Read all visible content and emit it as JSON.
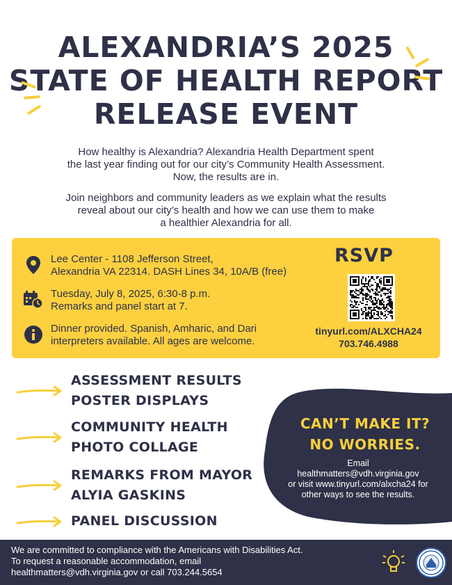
{
  "title": {
    "line1": "ALEXANDRIA’S 2025",
    "line2": "STATE OF HEALTH REPORT",
    "line3": "RELEASE EVENT"
  },
  "intro": {
    "p1": [
      "How healthy is Alexandria? Alexandria Health Department spent",
      "the last year finding out for our city’s Community Health Assessment.",
      "Now, the results are in."
    ],
    "p2": [
      "Join neighbors and community leaders as we explain what the results",
      "reveal about our city’s health and how we can use them to make",
      "a healthier Alexandria for all."
    ]
  },
  "details": {
    "location": [
      "Lee Center - 1108 Jefferson Street,",
      "Alexandria VA 22314. DASH Lines 34, 10A/B (free)"
    ],
    "time": [
      "Tuesday, July 8, 2025, 6:30-8 p.m.",
      "Remarks and panel start at 7."
    ],
    "info": [
      "Dinner provided. Spanish, Amharic, and Dari",
      "interpreters available. All ages are welcome."
    ],
    "icons": [
      "map-pin-icon",
      "calendar-clock-icon",
      "info-icon"
    ]
  },
  "rsvp": {
    "title": "RSVP",
    "url": "tinyurl.com/ALXCHA24",
    "phone": "703.746.4988"
  },
  "agenda": [
    [
      "ASSESSMENT RESULTS",
      "POSTER DISPLAYS"
    ],
    [
      "COMMUNITY HEALTH",
      "PHOTO COLLAGE"
    ],
    [
      "REMARKS FROM MAYOR",
      "ALYIA GASKINS"
    ],
    [
      "PANEL DISCUSSION"
    ]
  ],
  "cant_make_it": {
    "line1": "CAN’T MAKE IT?",
    "line2": "NO WORRIES.",
    "body": [
      "Email",
      "healthmatters@vdh.virginia.gov",
      "or visit www.tinyurl.com/alxcha24 for",
      "other ways to see the results."
    ]
  },
  "footer": {
    "lines": [
      "We are committed to compliance with the Americans with Disabilities Act.",
      "To request a reasonable accommodation, email",
      "healthmatters@vdh.virginia.gov or call 703.244.5654"
    ]
  },
  "colors": {
    "navy": "#2e3147",
    "yellow": "#fdd040",
    "accent_yellow": "#f7cf3d",
    "white": "#ffffff"
  }
}
